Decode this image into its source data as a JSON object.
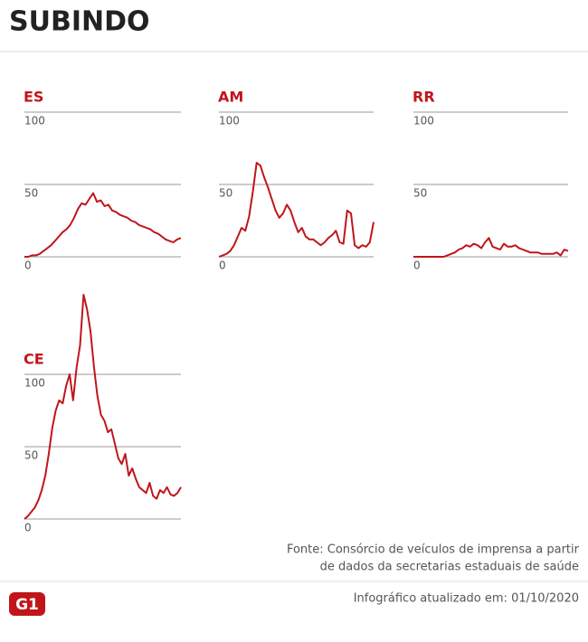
{
  "title": "SUBINDO",
  "source": [
    "Fonte: Consórcio de veículos de imprensa a partir",
    "de dados da secretarias estaduais de saúde"
  ],
  "updated": "Infográfico atualizado em: 01/10/2020",
  "logo": "G1",
  "chart_data": [
    {
      "type": "line",
      "title": "ES",
      "ylim": [
        0,
        100
      ],
      "yticks": [
        0,
        50,
        100
      ],
      "grid": true,
      "series": [
        {
          "color": "#c0161b",
          "values": [
            0,
            0,
            1,
            1,
            2,
            4,
            6,
            8,
            11,
            14,
            17,
            19,
            22,
            27,
            33,
            37,
            36,
            40,
            44,
            38,
            39,
            35,
            36,
            32,
            31,
            29,
            28,
            27,
            25,
            24,
            22,
            21,
            20,
            19,
            17,
            16,
            14,
            12,
            11,
            10,
            12,
            13
          ]
        }
      ]
    },
    {
      "type": "line",
      "title": "AM",
      "ylim": [
        0,
        100
      ],
      "yticks": [
        0,
        50,
        100
      ],
      "grid": true,
      "series": [
        {
          "color": "#c0161b",
          "values": [
            0,
            1,
            2,
            4,
            8,
            14,
            20,
            18,
            28,
            45,
            65,
            63,
            55,
            48,
            40,
            32,
            27,
            30,
            36,
            32,
            24,
            17,
            20,
            14,
            12,
            12,
            10,
            8,
            10,
            13,
            15,
            18,
            10,
            9,
            32,
            30,
            8,
            6,
            8,
            7,
            10,
            24
          ]
        }
      ]
    },
    {
      "type": "line",
      "title": "RR",
      "ylim": [
        0,
        100
      ],
      "yticks": [
        0,
        50,
        100
      ],
      "grid": true,
      "series": [
        {
          "color": "#c0161b",
          "values": [
            0,
            0,
            0,
            0,
            0,
            0,
            0,
            0,
            0,
            1,
            2,
            3,
            5,
            6,
            8,
            7,
            9,
            8,
            6,
            10,
            13,
            7,
            6,
            5,
            9,
            7,
            7,
            8,
            6,
            5,
            4,
            3,
            3,
            3,
            2,
            2,
            2,
            2,
            3,
            1,
            5,
            4
          ]
        }
      ]
    },
    {
      "type": "line",
      "title": "CE",
      "ylim": [
        0,
        160
      ],
      "yticks": [
        0,
        50,
        100
      ],
      "grid": true,
      "series": [
        {
          "color": "#c0161b",
          "values": [
            0,
            2,
            5,
            8,
            13,
            20,
            30,
            45,
            63,
            75,
            82,
            80,
            92,
            100,
            82,
            105,
            120,
            155,
            145,
            130,
            105,
            85,
            72,
            68,
            60,
            62,
            52,
            42,
            38,
            45,
            30,
            35,
            28,
            22,
            20,
            18,
            25,
            16,
            14,
            20,
            18,
            22,
            17,
            16,
            18,
            22
          ]
        }
      ]
    }
  ]
}
